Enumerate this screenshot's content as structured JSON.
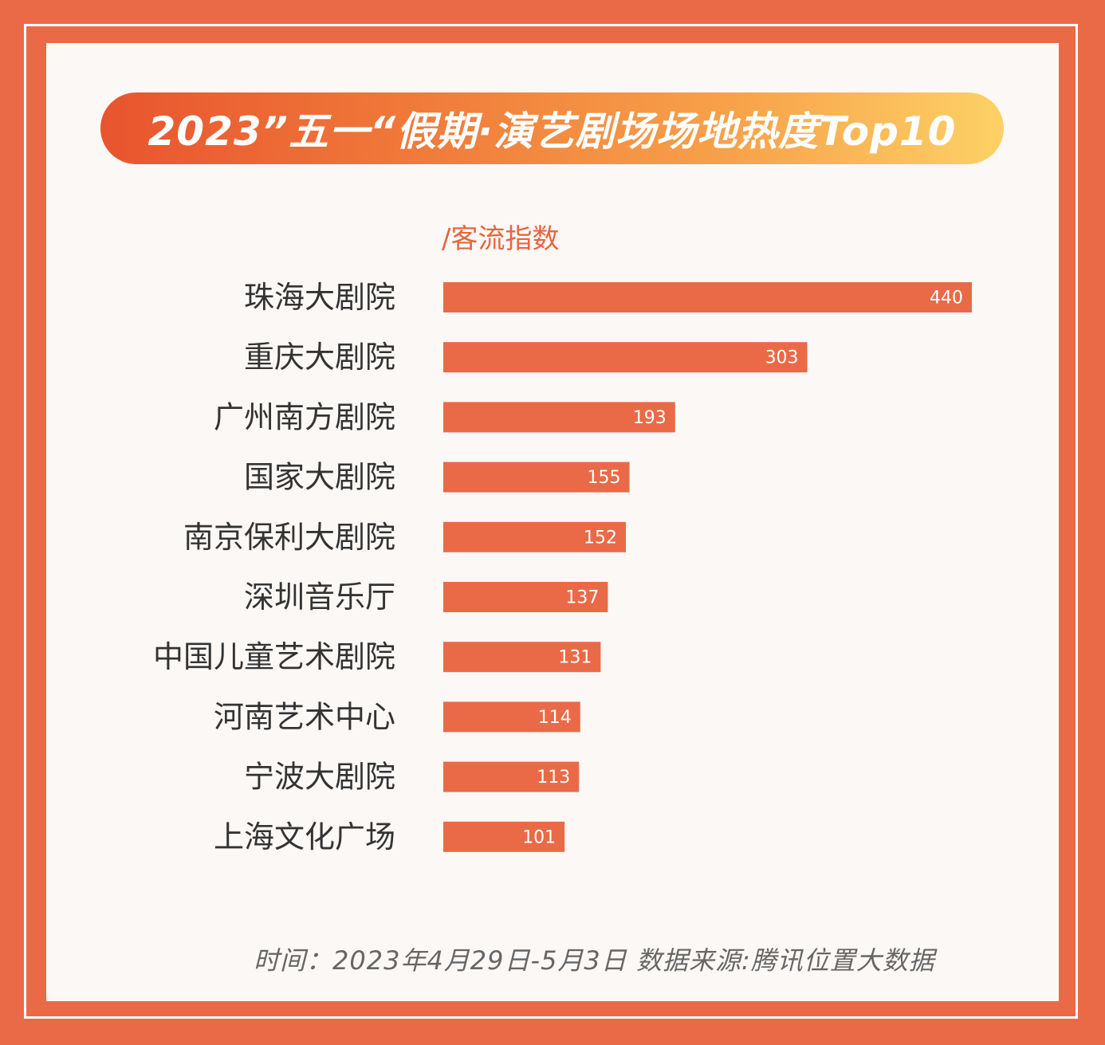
{
  "colors": {
    "background": "#ea6a47",
    "panel": "#fcf8f6",
    "bar": "#ea6a47",
    "accent_text": "#e8653f"
  },
  "title": "2023”五一“假期·演艺剧场场地热度Top10",
  "footer": "时间：2023年4月29日-5月3日  数据来源:腾讯位置大数据",
  "chart_data": {
    "type": "bar",
    "orientation": "horizontal",
    "title": "2023”五一“假期·演艺剧场场地热度Top10",
    "unit_label": "/客流指数",
    "categories": [
      "珠海大剧院",
      "重庆大剧院",
      "广州南方剧院",
      "国家大剧院",
      "南京保利大剧院",
      "深圳音乐厅",
      "中国儿童艺术剧院",
      "河南艺术中心",
      "宁波大剧院",
      "上海文化广场"
    ],
    "values": [
      440,
      303,
      193,
      155,
      152,
      137,
      131,
      114,
      113,
      101
    ],
    "data_labels": [
      "440",
      "303",
      "193",
      "155",
      "152",
      "137",
      "131",
      "114",
      "113",
      "101"
    ],
    "grid": false,
    "legend": "none"
  }
}
